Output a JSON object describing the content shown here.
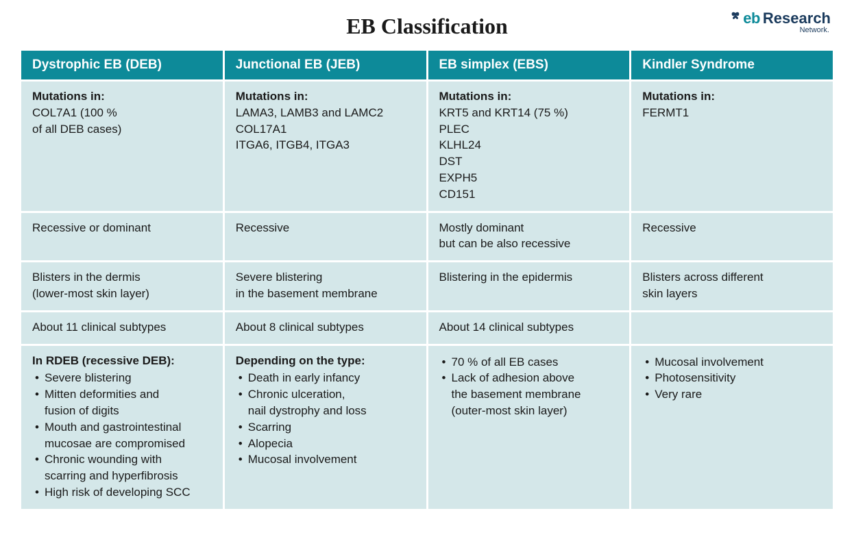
{
  "title": "EB Classification",
  "logo": {
    "eb": "eb",
    "research": "Research",
    "network": "Network."
  },
  "colors": {
    "header_bg": "#0d8a99",
    "header_text": "#ffffff",
    "cell_bg": "#d4e7e9",
    "text": "#1a1a1a",
    "logo_teal": "#0d8a99",
    "logo_navy": "#1a3a5c",
    "page_bg": "#ffffff"
  },
  "table": {
    "columns": [
      {
        "title": "Dystrophic EB (DEB)"
      },
      {
        "title": "Junctional EB (JEB)"
      },
      {
        "title": "EB simplex (EBS)"
      },
      {
        "title": "Kindler Syndrome"
      }
    ],
    "rows": {
      "mutations_label": "Mutations in:",
      "mutations": [
        [
          "COL7A1 (100 %",
          "of all DEB cases)"
        ],
        [
          "LAMA3, LAMB3 and LAMC2",
          "COL17A1",
          "ITGA6, ITGB4, ITGA3"
        ],
        [
          "KRT5 and KRT14 (75 %)",
          "PLEC",
          "KLHL24",
          "DST",
          "EXPH5",
          "CD151"
        ],
        [
          "FERMT1"
        ]
      ],
      "inheritance": [
        "Recessive or dominant",
        "Recessive",
        "Mostly dominant\nbut can be also recessive",
        "Recessive"
      ],
      "blistering": [
        "Blisters in the dermis\n(lower-most skin layer)",
        "Severe blistering\nin the basement membrane",
        "Blistering in the epidermis",
        "Blisters across different\nskin layers"
      ],
      "subtypes": [
        "About 11 clinical subtypes",
        "About 8 clinical subtypes",
        "About 14 clinical subtypes",
        ""
      ],
      "details": [
        {
          "heading": "In RDEB (recessive DEB):",
          "items": [
            "Severe blistering",
            "Mitten deformities and\nfusion of digits",
            "Mouth and gastrointestinal\nmucosae are compromised",
            "Chronic wounding with\nscarring and hyperfibrosis",
            "High risk of developing SCC"
          ]
        },
        {
          "heading": "Depending on the type:",
          "items": [
            "Death in early infancy",
            "Chronic ulceration,\nnail dystrophy and loss",
            "Scarring",
            "Alopecia",
            "Mucosal involvement"
          ]
        },
        {
          "heading": "",
          "items": [
            "70 % of all EB cases",
            "Lack of adhesion above\nthe basement membrane\n(outer-most skin layer)"
          ]
        },
        {
          "heading": "",
          "items": [
            "Mucosal involvement",
            "Photosensitivity",
            "Very rare"
          ]
        }
      ]
    }
  }
}
